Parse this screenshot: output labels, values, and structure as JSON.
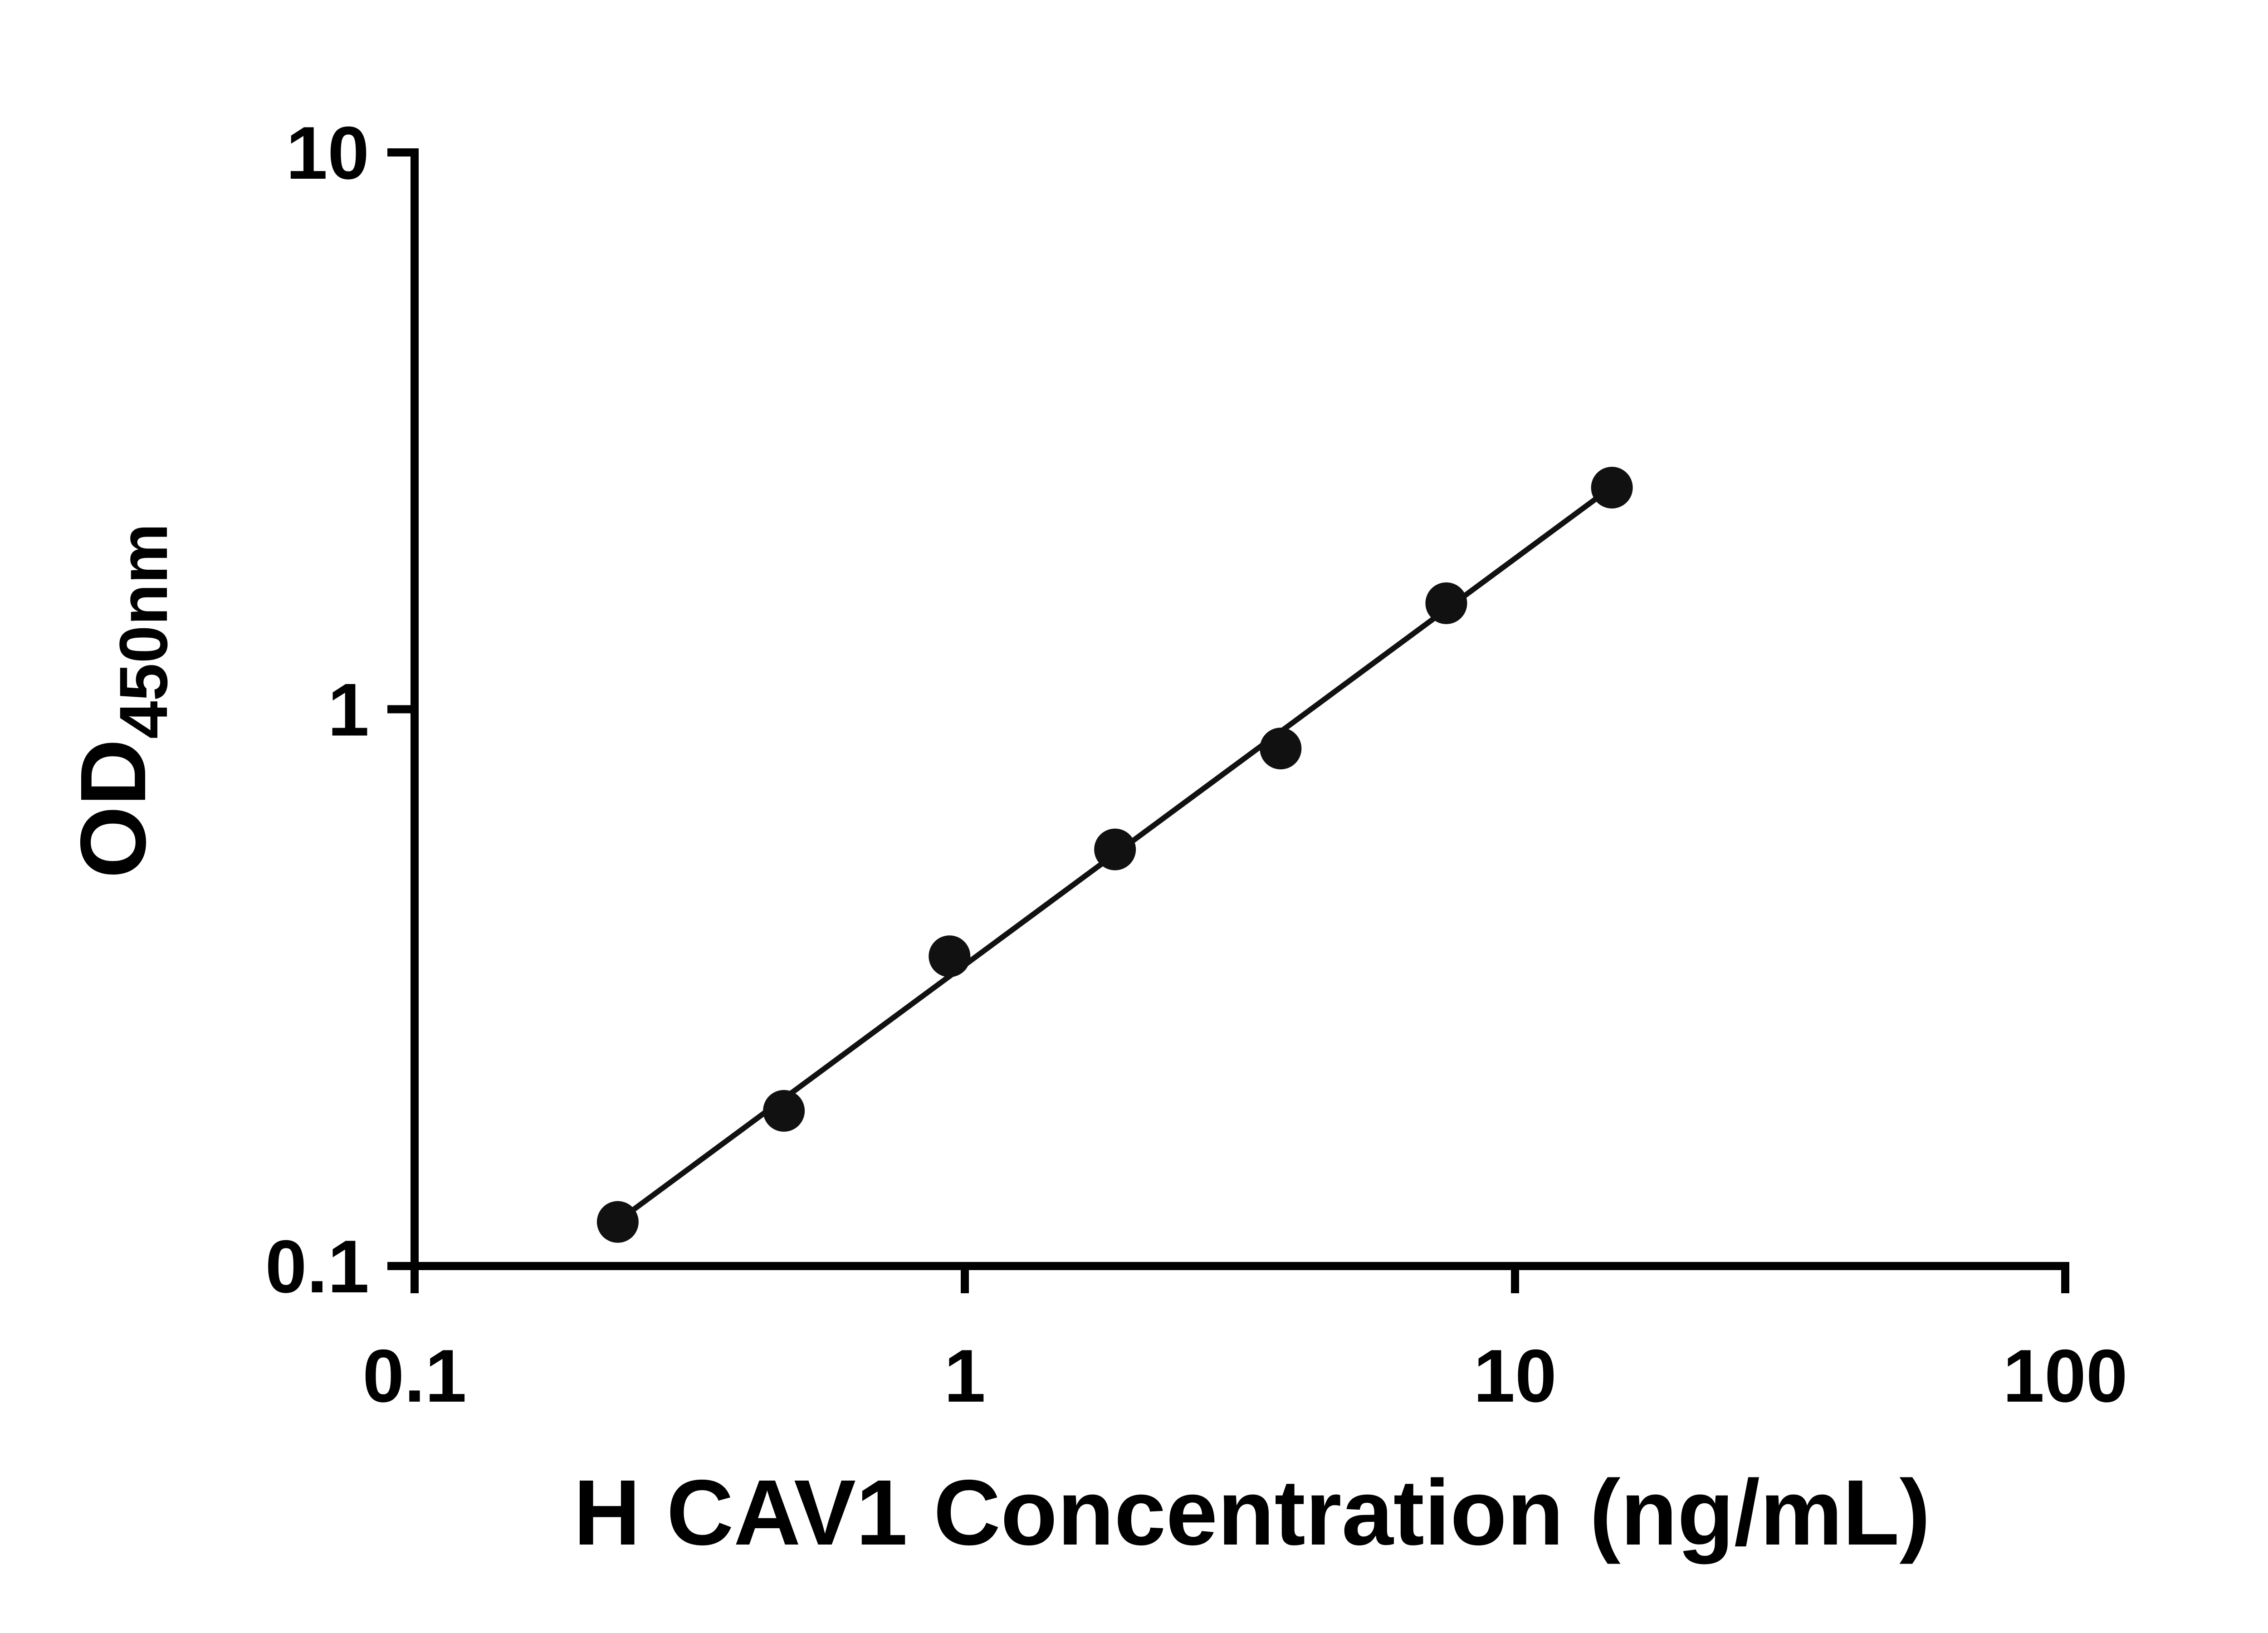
{
  "chart_data": {
    "type": "scatter",
    "title": "",
    "xlabel": "H CAV1 Concentration (ng/mL)",
    "ylabel": "OD",
    "ylabel_subscript": "450nm",
    "x_scale": "log",
    "y_scale": "log",
    "xlim": [
      0.1,
      100
    ],
    "ylim": [
      0.1,
      10
    ],
    "x_ticks": [
      0.1,
      1,
      10,
      100
    ],
    "x_tick_labels": [
      "0.1",
      "1",
      "10",
      "100"
    ],
    "y_ticks": [
      0.1,
      1,
      10
    ],
    "y_tick_labels": [
      "0.1",
      "1",
      "10"
    ],
    "x": [
      0.234,
      0.469,
      0.938,
      1.875,
      3.75,
      7.5,
      15
    ],
    "y": [
      0.12,
      0.19,
      0.36,
      0.56,
      0.85,
      1.55,
      2.5
    ],
    "trendline": true,
    "grid": false,
    "legend": "none",
    "marker_color": "#111111",
    "line_color": "#111111",
    "axis_color": "#000000",
    "background": "#ffffff"
  }
}
